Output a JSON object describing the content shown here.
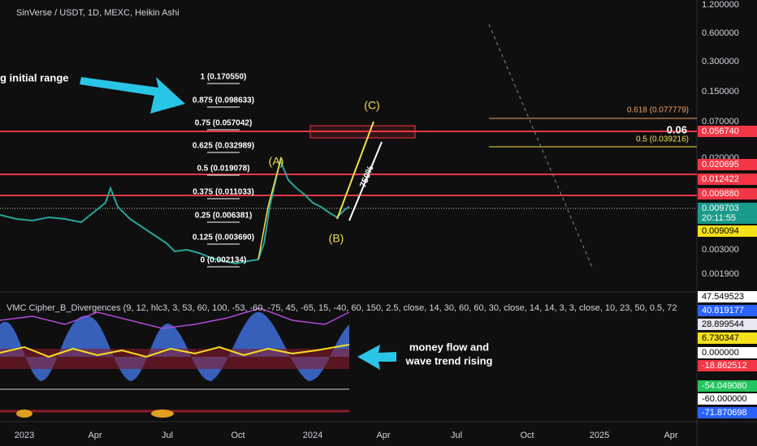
{
  "header": {
    "title": "SinVerse / USDT, 1D, MEXC, Heikin Ashi"
  },
  "annotations": {
    "initial_range": "g initial range",
    "money_flow_1": "money flow and",
    "money_flow_2": "wave trend rising",
    "wave_a": "(A)",
    "wave_b": "(B)",
    "wave_c": "(C)",
    "percent": "750%",
    "level_06": "0.06"
  },
  "fib_levels": [
    "1 (0.170550)",
    "0.875 (0.098633)",
    "0.75 (0.057042)",
    "0.625 (0.032989)",
    "0.5 (0.019078)",
    "0.375 (0.011033)",
    "0.25 (0.006381)",
    "0.125 (0.003690)",
    "0 (0.002134)"
  ],
  "right_fib": [
    {
      "text": "0.618 (0.077779)",
      "color": "#f0a060"
    },
    {
      "text": "0.5 (0.039216)",
      "color": "#f5e04a"
    }
  ],
  "price_axis": [
    "1.200000",
    "0.600000",
    "0.300000",
    "0.150000",
    "0.070000",
    "0.020000",
    "0.003000",
    "0.001900"
  ],
  "price_badges": [
    {
      "text": "0.056740",
      "color": "#f23645"
    },
    {
      "text": "0.020695",
      "color": "#f23645"
    },
    {
      "text": "0.012422",
      "color": "#f23645"
    },
    {
      "text": "0.009880",
      "color": "#f23645"
    },
    {
      "text": "0.009703",
      "color": "#1a9a8a"
    },
    {
      "text": "20:11:55",
      "color": "#1a9a8a"
    },
    {
      "text": "0.009094",
      "color": "#f5e11a"
    }
  ],
  "indicator": {
    "title": "VMC Cipher_B_Divergences (9, 12, hlc3, 3, 53, 60, 100, -53, -60, -75, 45, -65, 15, -40, 60, 150, 2.5, close, 14, 30, 60, 60, 30, close, 14, 14, 3, 3, close, 10, 23, 50, 0.5, 72",
    "badges": [
      {
        "text": "47.549523",
        "color": "#ffffff"
      },
      {
        "text": "40.819177",
        "color": "#2962ff"
      },
      {
        "text": "28.899544",
        "color": "#e8e8f0"
      },
      {
        "text": "6.730347",
        "color": "#f5e11a"
      },
      {
        "text": "0.000000",
        "color": "#ffffff"
      },
      {
        "text": "-18.862512",
        "color": "#f23645"
      },
      {
        "text": "-54.049080",
        "color": "#22c55e"
      },
      {
        "text": "-60.000000",
        "color": "#ffffff"
      },
      {
        "text": "-71.870698",
        "color": "#2962ff"
      }
    ]
  },
  "time_axis": [
    "2023",
    "Apr",
    "Jul",
    "Oct",
    "2024",
    "Apr",
    "Jul",
    "Oct",
    "2025",
    "Apr"
  ]
}
